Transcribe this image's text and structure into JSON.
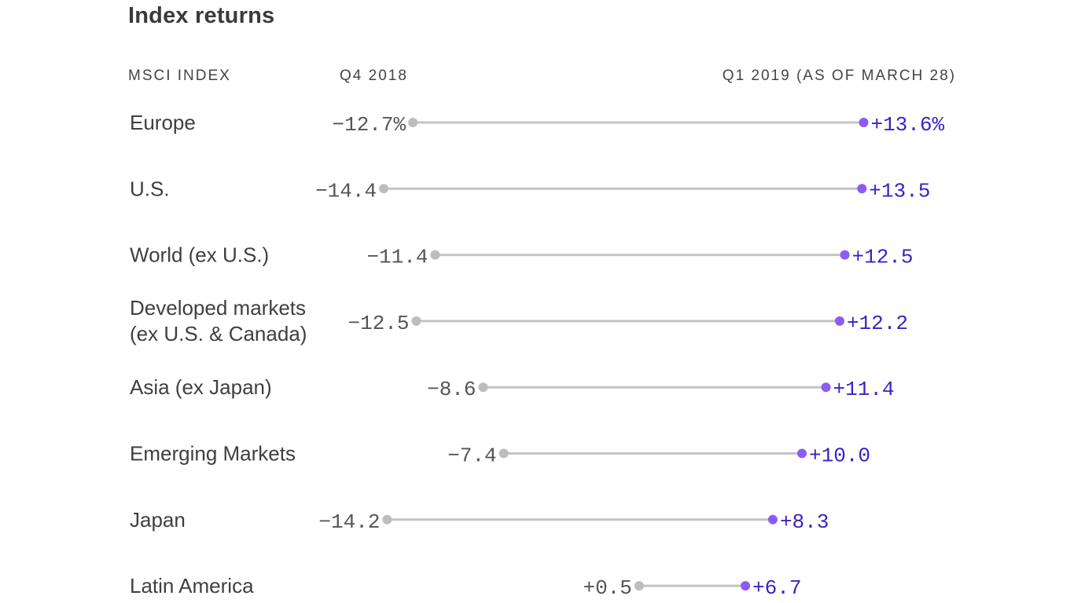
{
  "colors": {
    "start_dot": "#bdbdbd",
    "connector": "#c4c4c4",
    "end_dot": "#8b5cf6",
    "end_text": "#3b22c4",
    "start_text": "#555555"
  },
  "chart_data": {
    "type": "dumbbell",
    "title": "Index returns",
    "column_headers": {
      "category": "MSCI INDEX",
      "start": "Q4 2018",
      "end": "Q1 2019 (AS OF MARCH 28)"
    },
    "xlim": [
      -16,
      16
    ],
    "grid": false,
    "rows": [
      {
        "label": [
          "Europe"
        ],
        "start": -12.7,
        "end": 13.6,
        "start_text": "−12.7%",
        "end_text": "+13.6%"
      },
      {
        "label": [
          "U.S."
        ],
        "start": -14.4,
        "end": 13.5,
        "start_text": "−14.4",
        "end_text": "+13.5"
      },
      {
        "label": [
          "World (ex U.S.)"
        ],
        "start": -11.4,
        "end": 12.5,
        "start_text": "−11.4",
        "end_text": "+12.5"
      },
      {
        "label": [
          "Developed markets",
          "(ex U.S. & Canada)"
        ],
        "start": -12.5,
        "end": 12.2,
        "start_text": "−12.5",
        "end_text": "+12.2"
      },
      {
        "label": [
          "Asia (ex Japan)"
        ],
        "start": -8.6,
        "end": 11.4,
        "start_text": "−8.6",
        "end_text": "+11.4"
      },
      {
        "label": [
          "Emerging Markets"
        ],
        "start": -7.4,
        "end": 10.0,
        "start_text": "−7.4",
        "end_text": "+10.0"
      },
      {
        "label": [
          "Japan"
        ],
        "start": -14.2,
        "end": 8.3,
        "start_text": "−14.2",
        "end_text": "+8.3"
      },
      {
        "label": [
          "Latin America"
        ],
        "start": 0.5,
        "end": 6.7,
        "start_text": "+0.5",
        "end_text": "+6.7"
      }
    ]
  }
}
